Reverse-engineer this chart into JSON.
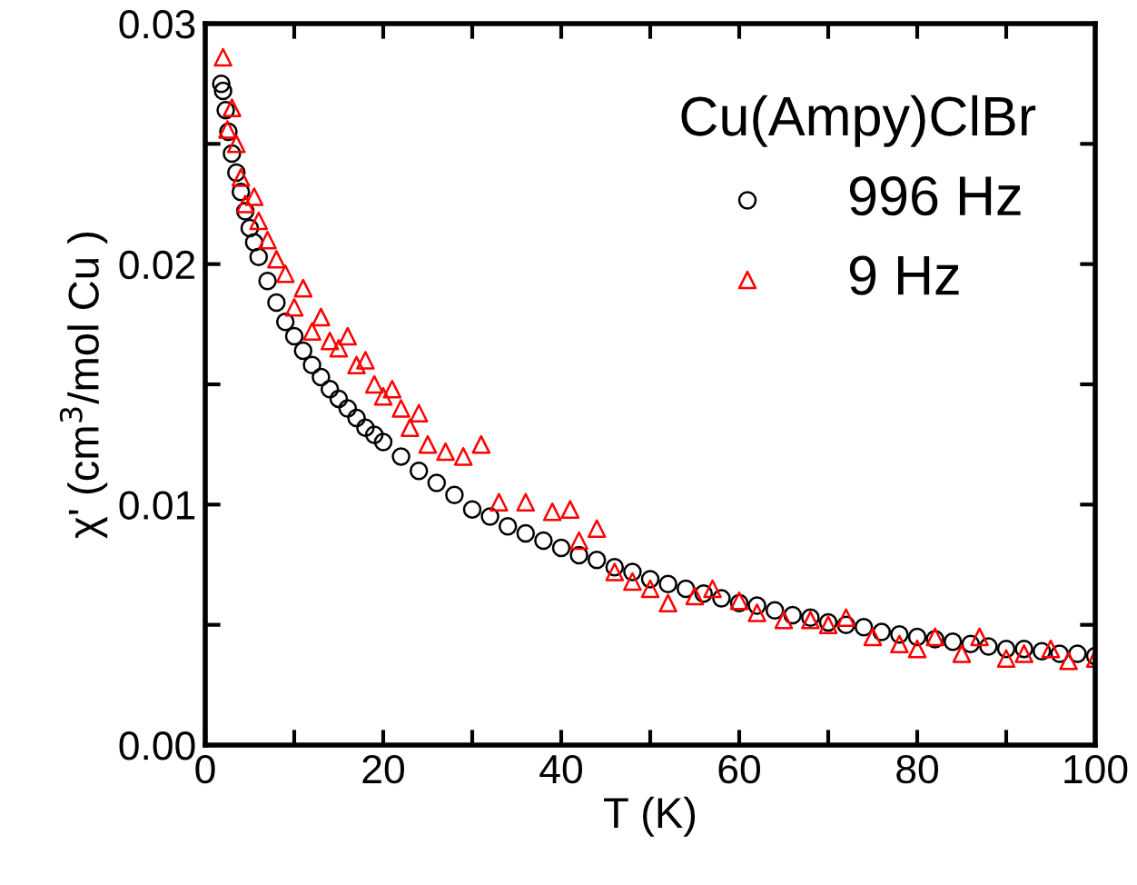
{
  "chart_data": {
    "type": "scatter",
    "xlabel": "T (K)",
    "ylabel": "χ' (cm$^{3}$/mol Cu )",
    "legend_title": "Cu(Ampy)ClBr",
    "legend": "top right",
    "grid": false,
    "xlim": [
      0,
      100
    ],
    "ylim": [
      0,
      0.03
    ],
    "xticks": [
      0,
      {
        "value": 10,
        "label": null
      },
      20,
      {
        "value": 30,
        "label": null
      },
      40,
      {
        "value": 50,
        "label": null
      },
      60,
      {
        "value": 70,
        "label": null
      },
      80,
      {
        "value": 90,
        "label": null
      },
      100
    ],
    "yticks": [
      {
        "value": 0,
        "label": "0.00"
      },
      {
        "value": 0.005,
        "label": null
      },
      {
        "value": 0.01,
        "label": "0.01"
      },
      {
        "value": 0.015,
        "label": null
      },
      {
        "value": 0.02,
        "label": "0.02"
      },
      {
        "value": 0.025,
        "label": null
      },
      {
        "value": 0.03,
        "label": "0.03"
      }
    ],
    "series": [
      {
        "name": "996 Hz",
        "color": "#000000",
        "marker": "circle",
        "x": [
          1.8,
          2,
          2.3,
          2.6,
          3,
          3.5,
          4,
          4.5,
          5,
          5.5,
          6,
          7,
          8,
          9,
          10,
          11,
          12,
          13,
          14,
          15,
          16,
          17,
          18,
          19,
          20,
          22,
          24,
          26,
          28,
          30,
          32,
          34,
          36,
          38,
          40,
          42,
          44,
          46,
          48,
          50,
          52,
          54,
          56,
          58,
          60,
          62,
          64,
          66,
          68,
          70,
          72,
          74,
          76,
          78,
          80,
          82,
          84,
          86,
          88,
          90,
          92,
          94,
          96,
          98,
          100
        ],
        "values": [
          0.0275,
          0.0272,
          0.0264,
          0.0255,
          0.0246,
          0.0238,
          0.023,
          0.0222,
          0.0215,
          0.0209,
          0.0203,
          0.0193,
          0.0184,
          0.0176,
          0.017,
          0.0164,
          0.0158,
          0.0153,
          0.0148,
          0.0144,
          0.014,
          0.0136,
          0.0132,
          0.0129,
          0.0126,
          0.012,
          0.0114,
          0.0109,
          0.0104,
          0.0098,
          0.0095,
          0.0091,
          0.0088,
          0.0085,
          0.0082,
          0.0079,
          0.0077,
          0.0074,
          0.0072,
          0.0069,
          0.0067,
          0.0065,
          0.0063,
          0.0061,
          0.0059,
          0.0058,
          0.0056,
          0.0054,
          0.0053,
          0.0051,
          0.005,
          0.0049,
          0.0047,
          0.0046,
          0.0045,
          0.0044,
          0.0043,
          0.0042,
          0.0041,
          0.004,
          0.004,
          0.0039,
          0.0038,
          0.0038,
          0.0037
        ]
      },
      {
        "name": "9 Hz",
        "color": "#ff0000",
        "marker": "triangle",
        "x": [
          2,
          2.5,
          3,
          3.5,
          4,
          4.5,
          5.5,
          6,
          7,
          8,
          9,
          10,
          11,
          12,
          13,
          14,
          15,
          16,
          17,
          18,
          19,
          20,
          21,
          22,
          23,
          24,
          25,
          27,
          29,
          31,
          33,
          36,
          39,
          41,
          42,
          44,
          46,
          48,
          50,
          52,
          55,
          57,
          60,
          62,
          65,
          68,
          70,
          72,
          75,
          78,
          80,
          82,
          85,
          87,
          90,
          92,
          95,
          97,
          100
        ],
        "values": [
          0.0286,
          0.0256,
          0.0265,
          0.025,
          0.0236,
          0.0225,
          0.0228,
          0.0218,
          0.021,
          0.0202,
          0.0196,
          0.0182,
          0.019,
          0.0172,
          0.0178,
          0.0168,
          0.0165,
          0.017,
          0.0158,
          0.016,
          0.015,
          0.0145,
          0.0148,
          0.014,
          0.0132,
          0.0138,
          0.0125,
          0.0122,
          0.012,
          0.0125,
          0.0101,
          0.0101,
          0.0097,
          0.0098,
          0.0085,
          0.009,
          0.0072,
          0.0068,
          0.0065,
          0.0059,
          0.0062,
          0.0065,
          0.006,
          0.0055,
          0.0052,
          0.0052,
          0.005,
          0.0053,
          0.0045,
          0.0042,
          0.004,
          0.0045,
          0.0038,
          0.0045,
          0.0036,
          0.0038,
          0.004,
          0.0035,
          0.0036
        ]
      }
    ]
  }
}
